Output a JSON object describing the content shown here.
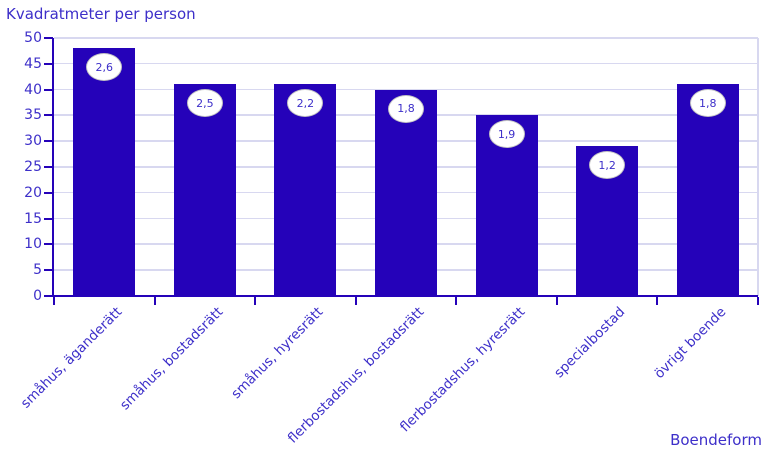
{
  "chart_data": {
    "type": "bar",
    "title": "Kvadratmeter per person",
    "xlabel": "Boendeform",
    "ylabel": "",
    "ylim": [
      0,
      50
    ],
    "ytick_step": 5,
    "grid": true,
    "legend_position": "none",
    "categories": [
      "småhus, äganderätt",
      "småhus, bostadsrätt",
      "småhus, hyresrätt",
      "flerbostadshus, bostadsrätt",
      "flerbostadshus, hyresrätt",
      "specialbostad",
      "övrigt boende"
    ],
    "values": [
      48,
      41,
      41,
      40,
      35,
      29,
      41
    ],
    "point_labels": [
      "2,6",
      "2,5",
      "2,2",
      "1,8",
      "1,9",
      "1,2",
      "1,8"
    ],
    "colors": {
      "bar": "#2502b9",
      "axis": "#2502b9",
      "text": "#3d2fc9",
      "grid": "#d8d8f0",
      "bubble_bg": "#ffffff",
      "bubble_border": "#c3c3c3"
    }
  }
}
